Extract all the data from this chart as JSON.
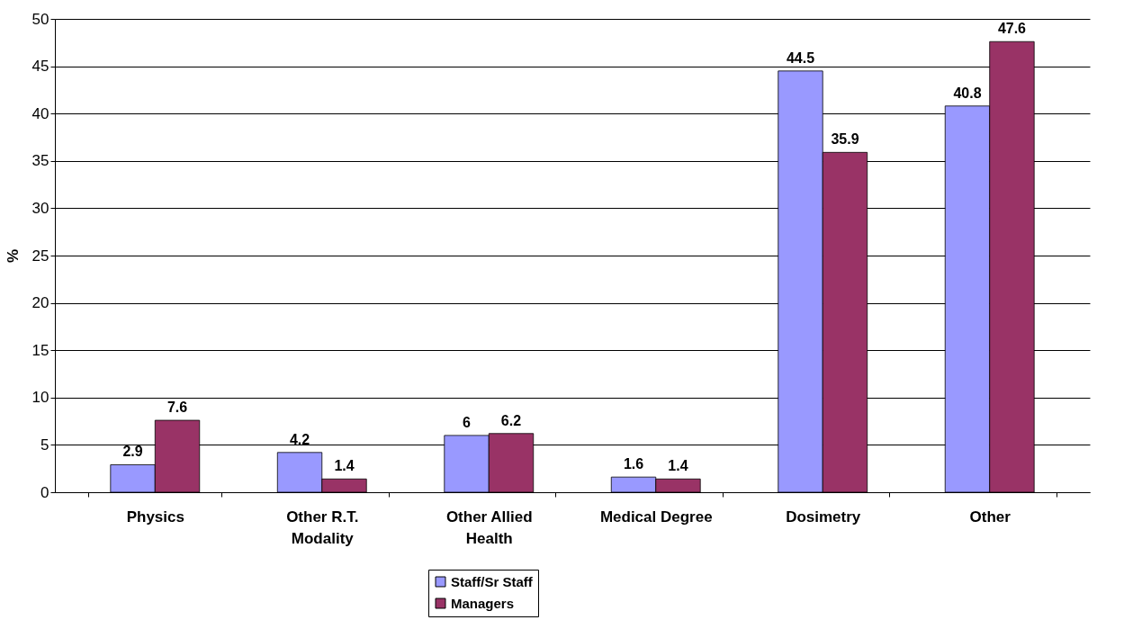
{
  "chart_data": {
    "type": "bar",
    "ylabel": "%",
    "categories": [
      "Physics",
      "Other R.T. Modality",
      "Other Allied Health",
      "Medical Degree",
      "Dosimetry",
      "Other"
    ],
    "series": [
      {
        "name": "Staff/Sr Staff",
        "color": "#9999ff",
        "values": [
          2.9,
          4.2,
          6,
          1.6,
          44.5,
          40.8
        ]
      },
      {
        "name": "Managers",
        "color": "#993366",
        "values": [
          7.6,
          1.4,
          6.2,
          1.4,
          35.9,
          47.6
        ]
      }
    ],
    "ylim": [
      0,
      50
    ],
    "yticks": [
      0,
      5,
      10,
      15,
      20,
      25,
      30,
      35,
      40,
      45,
      50
    ],
    "grid": "y",
    "legend": "bottom",
    "data_labels": true
  }
}
